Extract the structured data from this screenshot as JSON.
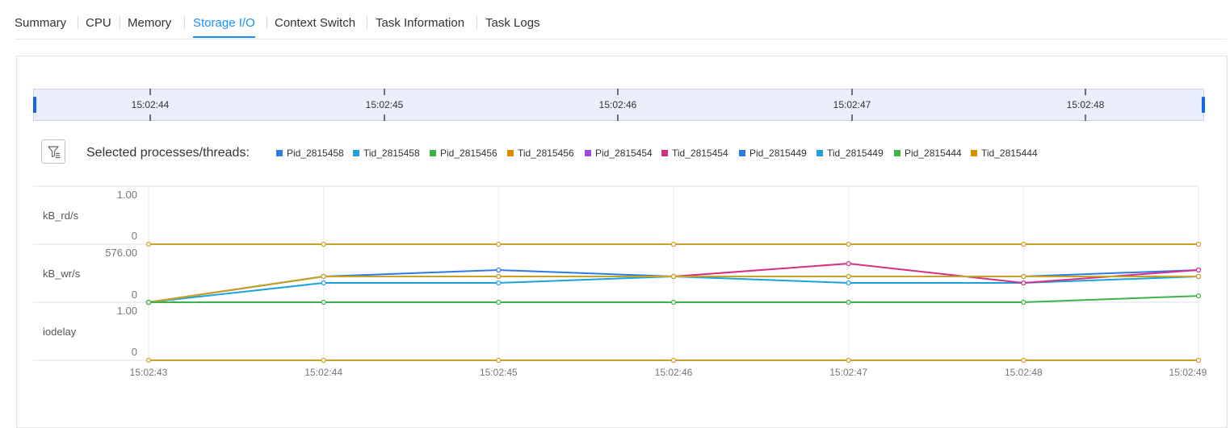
{
  "tabs": [
    "Summary",
    "CPU",
    "Memory",
    "Storage I/O",
    "Context Switch",
    "Task Information",
    "Task Logs"
  ],
  "active_tab": "Storage I/O",
  "timeline": {
    "labels": [
      "15:02:44",
      "15:02:45",
      "15:02:46",
      "15:02:47",
      "15:02:48"
    ]
  },
  "filter": {
    "icon": "filter-list-icon"
  },
  "legend": {
    "title": "Selected processes/threads:",
    "items": [
      {
        "label": "Pid_2815458",
        "color": "#2d7be5"
      },
      {
        "label": "Tid_2815458",
        "color": "#1ba3dd"
      },
      {
        "label": "Pid_2815456",
        "color": "#3cb34a"
      },
      {
        "label": "Tid_2815456",
        "color": "#d88c00"
      },
      {
        "label": "Pid_2815454",
        "color": "#9b49d6"
      },
      {
        "label": "Tid_2815454",
        "color": "#d62f85"
      },
      {
        "label": "Pid_2815449",
        "color": "#2d7be5"
      },
      {
        "label": "Tid_2815449",
        "color": "#1ba3dd"
      },
      {
        "label": "Pid_2815444",
        "color": "#3cb34a"
      },
      {
        "label": "Tid_2815444",
        "color": "#d88c00"
      }
    ]
  },
  "chart_data": {
    "type": "line",
    "x": [
      "15:02:43",
      "15:02:44",
      "15:02:45",
      "15:02:46",
      "15:02:47",
      "15:02:48",
      "15:02:49"
    ],
    "grid": true,
    "rows": [
      {
        "label": "kB_rd/s",
        "ylim": [
          0,
          1.0
        ],
        "yticks": [
          "1.00",
          "0"
        ],
        "series": [
          {
            "name": "Tid_2815444",
            "color": "#c9a227",
            "values": [
              0,
              0,
              0,
              0,
              0,
              0,
              0
            ]
          }
        ]
      },
      {
        "label": "kB_wr/s",
        "ylim": [
          0,
          576.0
        ],
        "yticks": [
          "576.00",
          "0"
        ],
        "series": [
          {
            "name": "Pid_2815458",
            "color": "#2d7be5",
            "values": [
              0,
              256,
              320,
              256,
              256,
              256,
              320
            ]
          },
          {
            "name": "Tid_2815458",
            "color": "#1ba3dd",
            "values": [
              0,
              192,
              192,
              256,
              192,
              192,
              256
            ]
          },
          {
            "name": "Tid_2815454",
            "color": "#d62f85",
            "values": [
              0,
              256,
              256,
              256,
              384,
              192,
              320
            ]
          },
          {
            "name": "Pid_2815456",
            "color": "#3cb34a",
            "values": [
              0,
              256,
              256,
              256,
              256,
              256,
              256
            ]
          },
          {
            "name": "Tid_2815456",
            "color": "#c9a227",
            "values": [
              0,
              256,
              256,
              256,
              256,
              256,
              256
            ]
          }
        ]
      },
      {
        "label": "iodelay",
        "ylim": [
          0,
          1.0
        ],
        "yticks": [
          "1.00",
          "0"
        ],
        "series": [
          {
            "name": "Pid_2815456",
            "color": "#3cb34a",
            "values": [
              1.0,
              1.0,
              1.0,
              1.0,
              1.0,
              1.0,
              1.11
            ]
          },
          {
            "name": "Tid_2815444",
            "color": "#c9a227",
            "values": [
              0,
              0,
              0,
              0,
              0,
              0,
              0
            ]
          }
        ]
      }
    ]
  }
}
